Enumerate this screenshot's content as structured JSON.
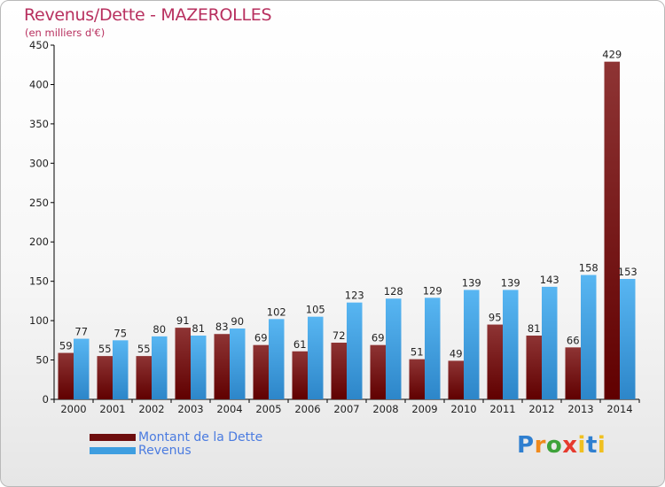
{
  "title": "Revenus/Dette - MAZEROLLES",
  "subtitle": "(en milliers d'€)",
  "legend": [
    {
      "label": "Montant de la Dette",
      "color": "#6d0d0d"
    },
    {
      "label": "Revenus",
      "color": "#3e9ee0"
    }
  ],
  "logo": {
    "text": "Proxiti"
  },
  "colors": {
    "debt_light": "#8e3434",
    "debt_dark": "#600000",
    "rev_light": "#58b6f2",
    "rev_dark": "#2d86c9",
    "axis": "#000000",
    "grid": "#c8c8c8",
    "label": "#222222"
  },
  "chart_data": {
    "type": "bar",
    "title": "Revenus/Dette - MAZEROLLES",
    "subtitle": "(en milliers d'€)",
    "categories": [
      "2000",
      "2001",
      "2002",
      "2003",
      "2004",
      "2005",
      "2006",
      "2007",
      "2008",
      "2009",
      "2010",
      "2011",
      "2012",
      "2013",
      "2014"
    ],
    "series": [
      {
        "name": "Montant de la Dette",
        "values": [
          59,
          55,
          55,
          91,
          83,
          69,
          61,
          72,
          69,
          51,
          49,
          95,
          81,
          66,
          429
        ]
      },
      {
        "name": "Revenus",
        "values": [
          77,
          75,
          80,
          81,
          90,
          102,
          105,
          123,
          128,
          129,
          139,
          139,
          143,
          158,
          153
        ]
      }
    ],
    "ylim": [
      0,
      450
    ],
    "yticks": [
      0,
      50,
      100,
      150,
      200,
      250,
      300,
      350,
      400,
      450
    ],
    "grid": false,
    "legend_position": "bottom-left"
  }
}
